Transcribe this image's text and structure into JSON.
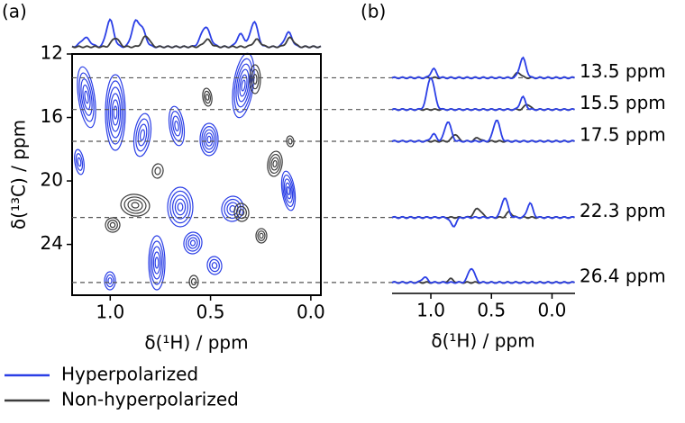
{
  "chart_data": [
    {
      "type": "contour",
      "panel_label": "(a)",
      "xlabel": "δ(¹H) / ppm",
      "ylabel": "δ(¹³C) / ppm",
      "xlim": [
        1.19,
        -0.05
      ],
      "ylim": [
        12,
        27.2
      ],
      "xticks": [
        {
          "value": 1.0,
          "label": "1.0"
        },
        {
          "value": 0.5,
          "label": "0.5"
        },
        {
          "value": 0.0,
          "label": "0.0"
        }
      ],
      "yticks": [
        12,
        16,
        20,
        24
      ],
      "slices": [
        13.5,
        15.5,
        17.5,
        22.3,
        26.4
      ]
    },
    {
      "type": "slices",
      "panel_label": "(b)",
      "xlabel": "δ(¹H) / ppm",
      "xlim": [
        1.32,
        -0.19
      ],
      "xticks": [
        {
          "value": 1.0,
          "label": "1.0"
        },
        {
          "value": 0.5,
          "label": "0.5"
        },
        {
          "value": 0.0,
          "label": "0.0"
        }
      ],
      "slices": [
        13.5,
        15.5,
        17.5,
        22.3,
        26.4
      ],
      "value_labels": [
        "13.5 ppm",
        "15.5 ppm",
        "17.5 ppm",
        "22.3 ppm",
        "26.4 ppm"
      ]
    }
  ],
  "legend": [
    {
      "name": "Hyperpolarized",
      "color": "#2b3fe6"
    },
    {
      "name": "Non-hyperpolarized",
      "color": "#3c3c3c"
    }
  ]
}
